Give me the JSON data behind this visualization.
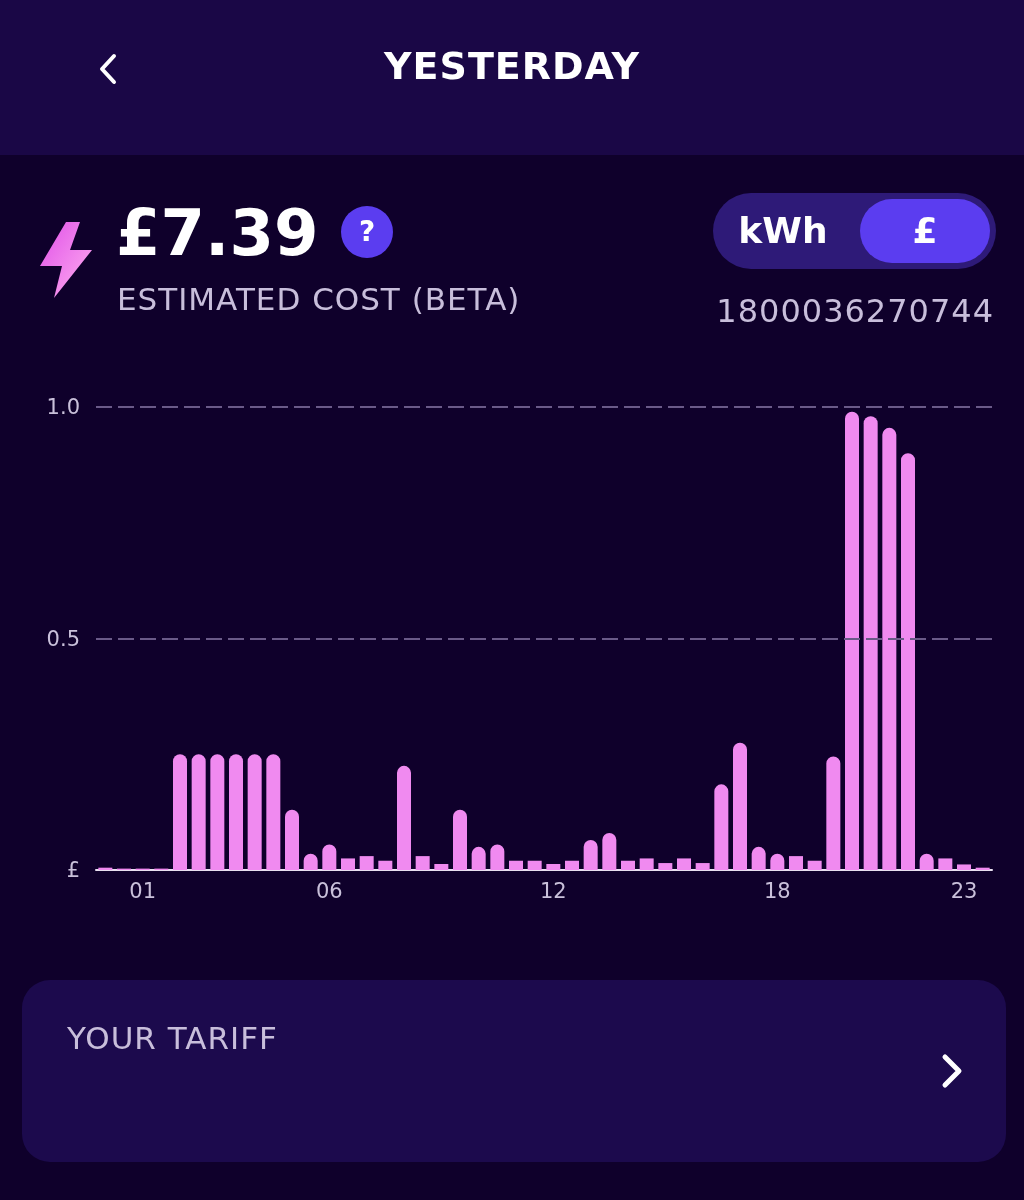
{
  "chart_data": {
    "type": "bar",
    "title": "YESTERDAY",
    "annotations": [
      "£7.39",
      "ESTIMATED COST (BETA)",
      "kWh",
      "£",
      "1800036270744",
      "YOUR TARIFF",
      "?"
    ],
    "categories": [
      null,
      null,
      "01",
      null,
      null,
      null,
      null,
      null,
      null,
      null,
      null,
      null,
      "06",
      null,
      null,
      null,
      null,
      null,
      null,
      null,
      null,
      null,
      null,
      null,
      "12",
      null,
      null,
      null,
      null,
      null,
      null,
      null,
      null,
      null,
      null,
      null,
      "18",
      null,
      null,
      null,
      null,
      null,
      null,
      null,
      null,
      null,
      "23",
      null
    ],
    "values": [
      0.005,
      0.003,
      0.003,
      0.003,
      0.25,
      0.25,
      0.25,
      0.25,
      0.25,
      0.25,
      0.13,
      0.035,
      0.055,
      0.025,
      0.03,
      0.02,
      0.225,
      0.03,
      0.013,
      0.13,
      0.05,
      0.055,
      0.02,
      0.02,
      0.013,
      0.02,
      0.065,
      0.08,
      0.02,
      0.025,
      0.015,
      0.025,
      0.015,
      0.185,
      0.275,
      0.05,
      0.035,
      0.03,
      0.02,
      0.245,
      0.99,
      0.98,
      0.955,
      0.9,
      0.035,
      0.025,
      0.012,
      0.005
    ],
    "color": "#f08af0",
    "ylim": [
      0,
      1
    ],
    "yticks": [
      {
        "value": 0,
        "label": "£"
      },
      {
        "value": 0.5,
        "label": "0.5"
      },
      {
        "value": 1,
        "label": "1.0"
      }
    ],
    "ref_lines": [
      {
        "axis": "y",
        "value": 0.5,
        "color": "#6a5a88",
        "line_style": "dashed"
      },
      {
        "axis": "y",
        "value": 1,
        "color": "#6a5a88",
        "line_style": "dashed"
      }
    ]
  }
}
